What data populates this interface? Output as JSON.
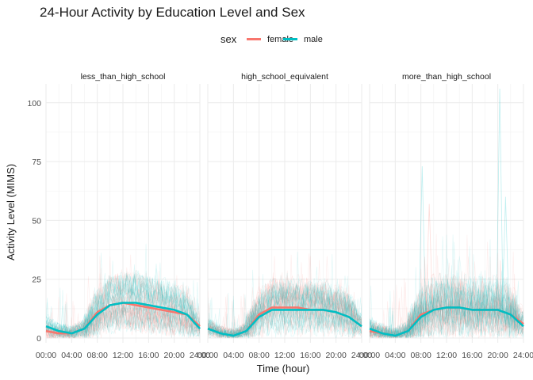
{
  "chart_data": {
    "type": "line",
    "title": "24-Hour Activity by Education Level and Sex",
    "xlabel": "Time (hour)",
    "ylabel": "Activity Level (MIMS)",
    "xlim": [
      0,
      24
    ],
    "ylim": [
      -2,
      108
    ],
    "x_ticks": [
      "00:00",
      "04:00",
      "08:00",
      "12:00",
      "16:00",
      "20:00",
      "24:00"
    ],
    "y_ticks": [
      0,
      25,
      50,
      75,
      100
    ],
    "grid": true,
    "legend": {
      "title": "sex",
      "position": "top",
      "entries": [
        {
          "label": "female",
          "color": "#F8766D"
        },
        {
          "label": "male",
          "color": "#00BFC4"
        }
      ]
    },
    "facets": [
      {
        "label": "less_than_high_school",
        "x": [
          0,
          2,
          4,
          6,
          8,
          10,
          12,
          14,
          16,
          18,
          20,
          22,
          24
        ],
        "series": [
          {
            "name": "female",
            "color": "#F8766D",
            "values": [
              3,
              2,
              2,
              4,
              11,
              14,
              15,
              14,
              13,
              12,
              11,
              10,
              5
            ]
          },
          {
            "name": "male",
            "color": "#00BFC4",
            "values": [
              5,
              3,
              2,
              4,
              10,
              14,
              15,
              15,
              14,
              13,
              12,
              10,
              4
            ]
          }
        ]
      },
      {
        "label": "high_school_equivalent",
        "x": [
          0,
          2,
          4,
          6,
          8,
          10,
          12,
          14,
          16,
          18,
          20,
          22,
          24
        ],
        "series": [
          {
            "name": "female",
            "color": "#F8766D",
            "values": [
              4,
              2,
              1,
              3,
              10,
              13,
              13,
              13,
              12,
              12,
              11,
              9,
              5
            ]
          },
          {
            "name": "male",
            "color": "#00BFC4",
            "values": [
              4,
              2,
              1,
              3,
              9,
              12,
              12,
              12,
              12,
              12,
              11,
              9,
              5
            ]
          }
        ]
      },
      {
        "label": "more_than_high_school",
        "x": [
          0,
          2,
          4,
          6,
          8,
          10,
          12,
          14,
          16,
          18,
          20,
          22,
          24
        ],
        "series": [
          {
            "name": "female",
            "color": "#F8766D",
            "values": [
              3,
              2,
              1,
              3,
              10,
              12,
              13,
              13,
              12,
              12,
              12,
              10,
              6
            ]
          },
          {
            "name": "male",
            "color": "#00BFC4",
            "values": [
              4,
              2,
              1,
              3,
              9,
              12,
              13,
              13,
              12,
              12,
              12,
              10,
              5
            ]
          }
        ]
      }
    ]
  }
}
